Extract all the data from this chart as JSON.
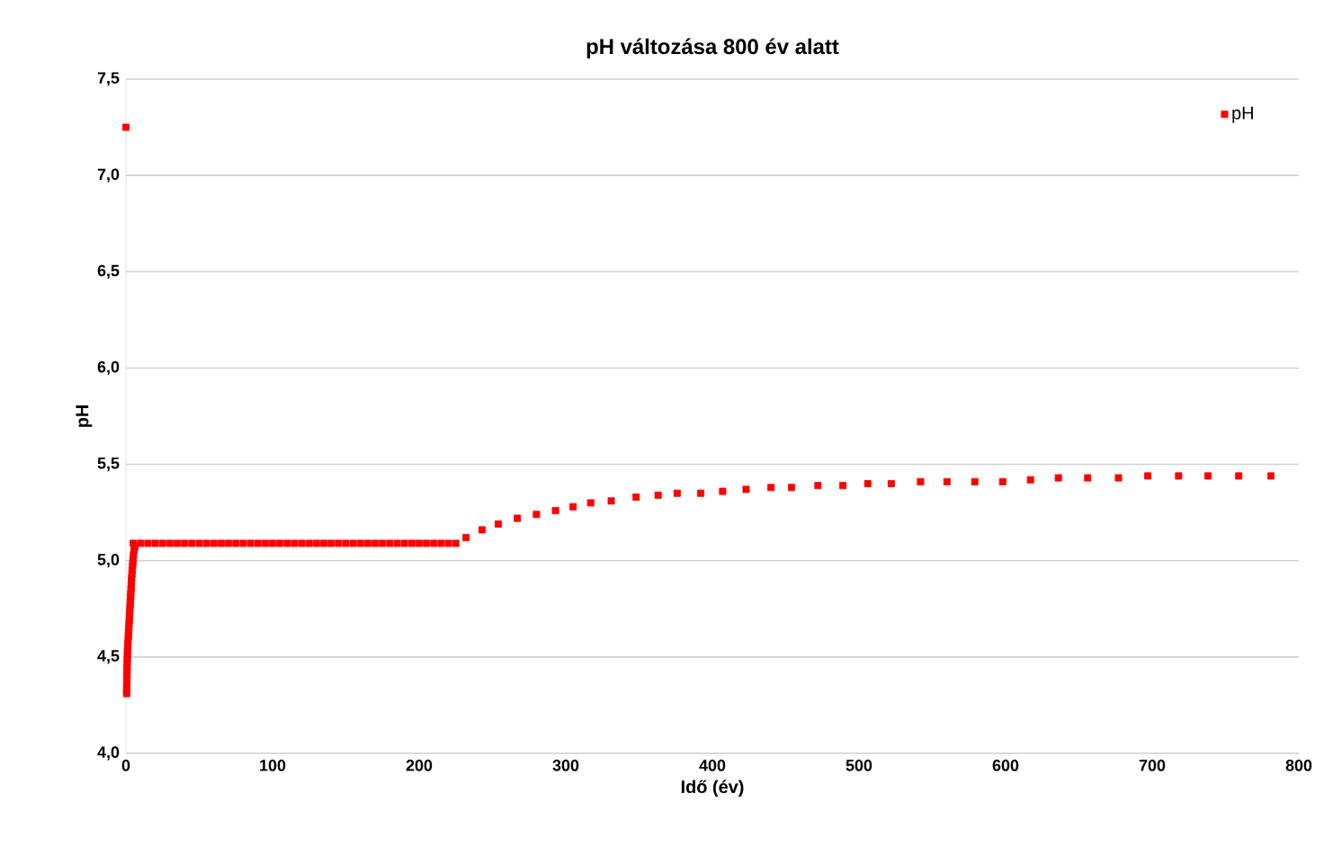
{
  "chart_data": {
    "type": "scatter",
    "title": "pH változása 800 év alatt",
    "xlabel": "Idő (év)",
    "ylabel": "pH",
    "xlim": [
      0,
      800
    ],
    "xticks": [
      0,
      100,
      200,
      300,
      400,
      500,
      600,
      700,
      800
    ],
    "ylim": [
      4.0,
      7.5
    ],
    "yticks": [
      {
        "value": 4.0,
        "label": "4,0"
      },
      {
        "value": 4.5,
        "label": "4,5"
      },
      {
        "value": 5.0,
        "label": "5,0"
      },
      {
        "value": 5.5,
        "label": "5,5"
      },
      {
        "value": 6.0,
        "label": "6,0"
      },
      {
        "value": 6.5,
        "label": "6,5"
      },
      {
        "value": 7.0,
        "label": "7,0"
      },
      {
        "value": 7.5,
        "label": "7,5"
      }
    ],
    "grid": "y",
    "legend": "top right",
    "marker": "square",
    "series": [
      {
        "name": "pH",
        "color": "#ff0000",
        "x": [
          0,
          0.5,
          0.5,
          0.6,
          0.6,
          0.7,
          0.7,
          0.8,
          0.8,
          0.9,
          0.9,
          1.0,
          1.0,
          1.2,
          1.4,
          1.5,
          1.7,
          1.8,
          2.0,
          2.1,
          2.3,
          2.4,
          2.6,
          2.7,
          2.9,
          3.0,
          3.2,
          3.3,
          3.5,
          3.6,
          3.8,
          3.9,
          4.1,
          4.3,
          4.5,
          4.7,
          4.9,
          5.2,
          5.5,
          6,
          5,
          10,
          15,
          20,
          25,
          30,
          35,
          40,
          45,
          50,
          55,
          60,
          65,
          70,
          75,
          80,
          85,
          90,
          95,
          100,
          105,
          110,
          115,
          120,
          125,
          130,
          135,
          140,
          145,
          150,
          155,
          160,
          165,
          170,
          175,
          180,
          185,
          190,
          195,
          200,
          205,
          210,
          215,
          220,
          225,
          232,
          243,
          254,
          267,
          280,
          293,
          305,
          317,
          331,
          348,
          363,
          376,
          392,
          407,
          423,
          440,
          454,
          472,
          489,
          506,
          522,
          542,
          560,
          579,
          598,
          617,
          636,
          656,
          677,
          697,
          718,
          738,
          759,
          781
        ],
        "values": [
          7.25,
          4.31,
          4.33,
          4.35,
          4.37,
          4.39,
          4.41,
          4.43,
          4.45,
          4.47,
          4.49,
          4.51,
          4.53,
          4.55,
          4.57,
          4.59,
          4.61,
          4.63,
          4.65,
          4.67,
          4.69,
          4.71,
          4.73,
          4.75,
          4.77,
          4.79,
          4.81,
          4.83,
          4.85,
          4.87,
          4.89,
          4.91,
          4.93,
          4.95,
          4.97,
          4.99,
          5.01,
          5.03,
          5.05,
          5.07,
          5.09,
          5.09,
          5.09,
          5.09,
          5.09,
          5.09,
          5.09,
          5.09,
          5.09,
          5.09,
          5.09,
          5.09,
          5.09,
          5.09,
          5.09,
          5.09,
          5.09,
          5.09,
          5.09,
          5.09,
          5.09,
          5.09,
          5.09,
          5.09,
          5.09,
          5.09,
          5.09,
          5.09,
          5.09,
          5.09,
          5.09,
          5.09,
          5.09,
          5.09,
          5.09,
          5.09,
          5.09,
          5.09,
          5.09,
          5.09,
          5.09,
          5.09,
          5.09,
          5.09,
          5.09,
          5.12,
          5.16,
          5.19,
          5.22,
          5.24,
          5.26,
          5.28,
          5.3,
          5.31,
          5.33,
          5.34,
          5.35,
          5.35,
          5.36,
          5.37,
          5.38,
          5.38,
          5.39,
          5.39,
          5.4,
          5.4,
          5.41,
          5.41,
          5.41,
          5.41,
          5.42,
          5.43,
          5.43,
          5.43,
          5.44,
          5.44,
          5.44,
          5.44,
          5.44
        ]
      }
    ]
  }
}
